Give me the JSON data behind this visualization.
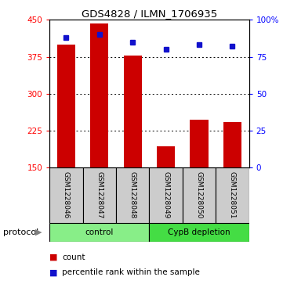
{
  "title": "GDS4828 / ILMN_1706935",
  "samples": [
    "GSM1228046",
    "GSM1228047",
    "GSM1228048",
    "GSM1228049",
    "GSM1228050",
    "GSM1228051"
  ],
  "counts": [
    400,
    443,
    378,
    193,
    248,
    243
  ],
  "percentile_ranks": [
    88,
    90,
    85,
    80,
    83,
    82
  ],
  "ylim_left": [
    150,
    450
  ],
  "ylim_right": [
    0,
    100
  ],
  "yticks_left": [
    150,
    225,
    300,
    375,
    450
  ],
  "yticks_right": [
    0,
    25,
    50,
    75,
    100
  ],
  "ytick_labels_right": [
    "0",
    "25",
    "50",
    "75",
    "100%"
  ],
  "bar_color": "#cc0000",
  "dot_color": "#1111cc",
  "control_color": "#88ee88",
  "depletion_color": "#44dd44",
  "label_bg_color": "#cccccc",
  "legend_count_label": "count",
  "legend_pct_label": "percentile rank within the sample",
  "protocol_label": "protocol"
}
